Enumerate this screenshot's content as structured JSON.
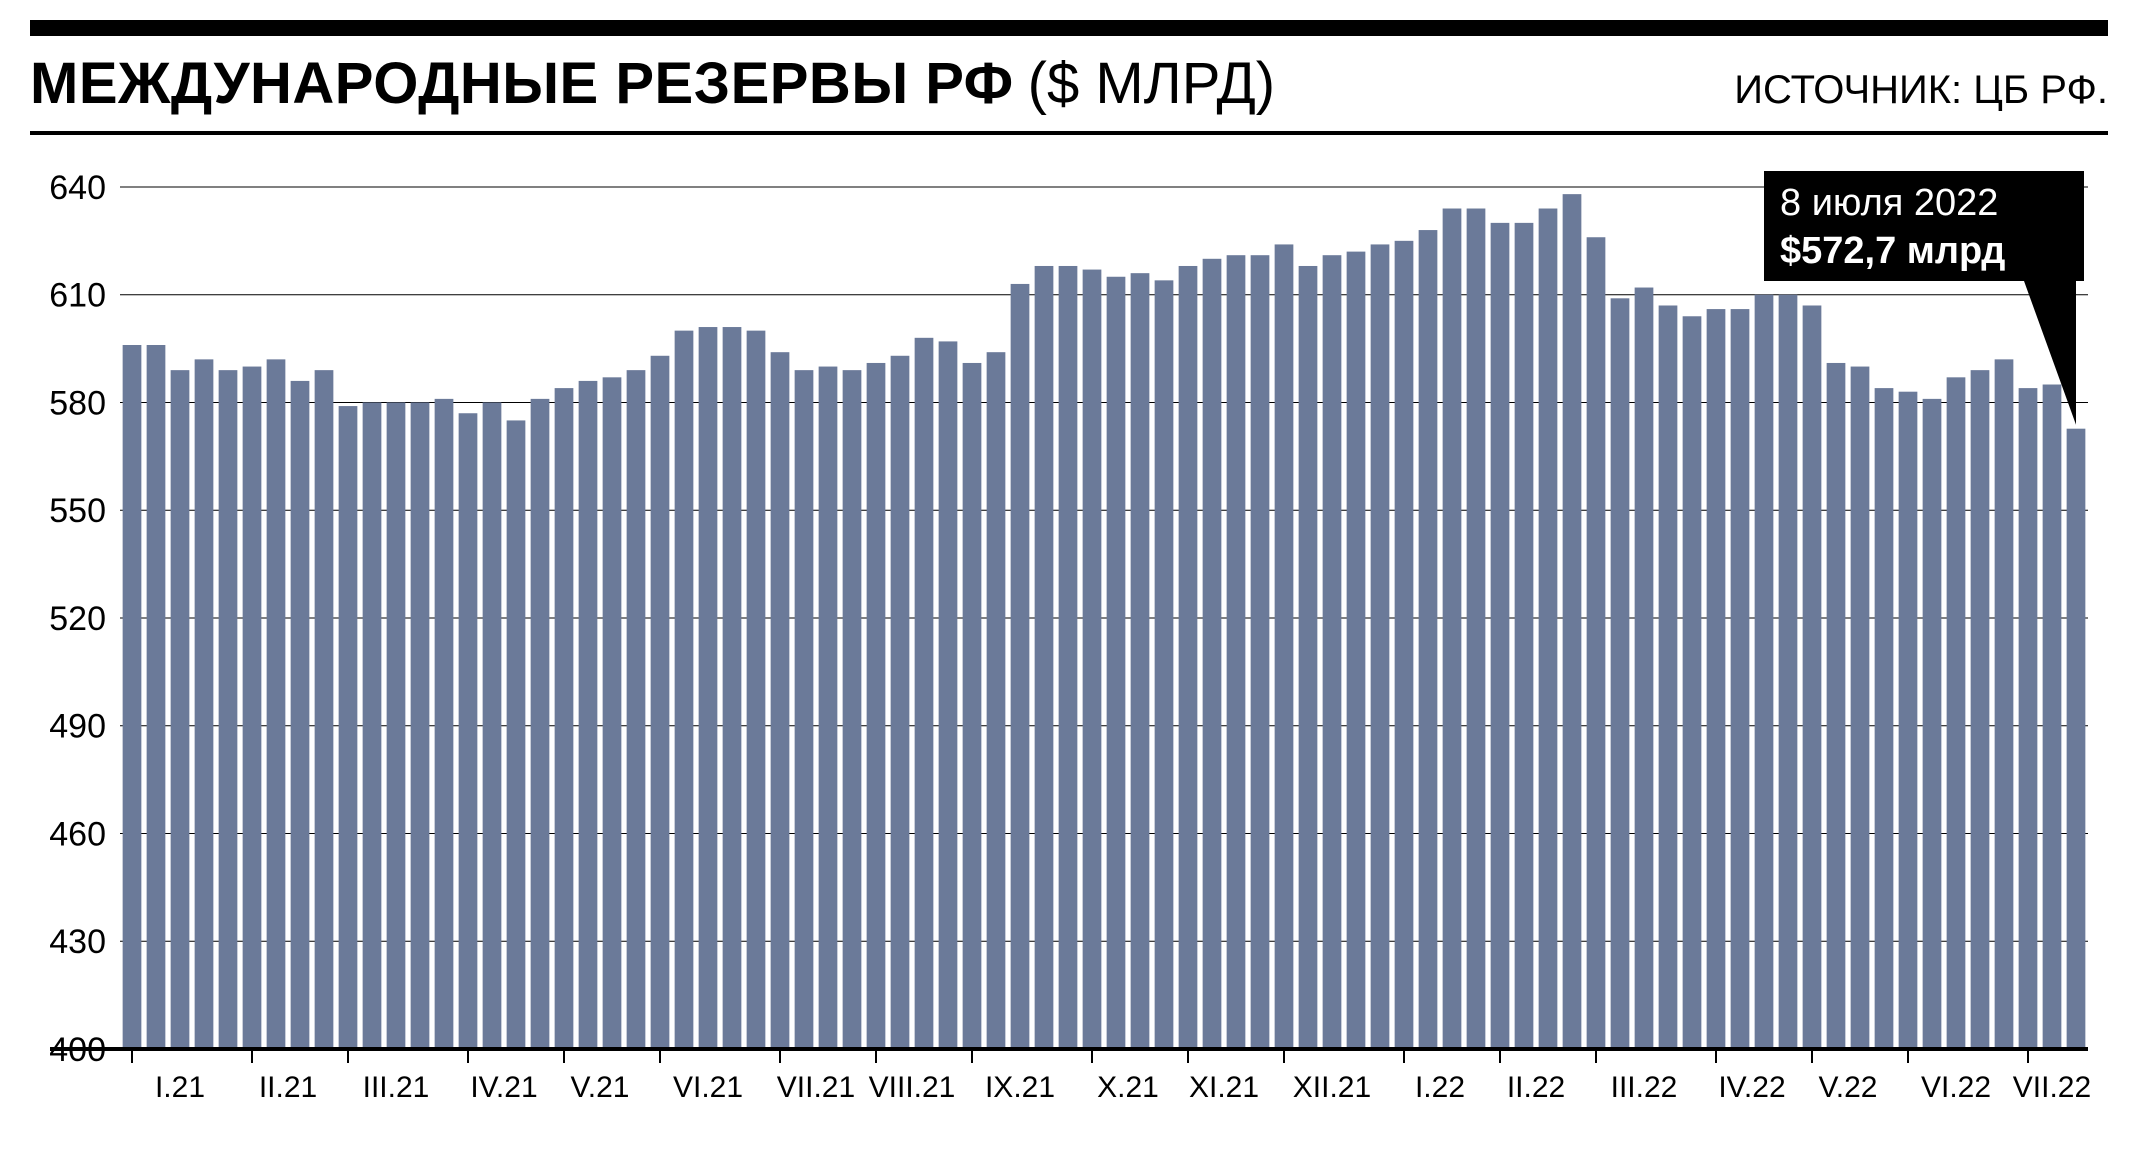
{
  "header": {
    "title_bold": "МЕЖДУНАРОДНЫЕ РЕЗЕРВЫ РФ",
    "title_light": "($ МЛРД)",
    "source": "ИСТОЧНИК: ЦБ РФ."
  },
  "chart": {
    "type": "bar",
    "y_axis": {
      "min": 400,
      "max": 645,
      "ticks": [
        400,
        430,
        460,
        490,
        520,
        550,
        580,
        610,
        640
      ],
      "grid_color": "#000000",
      "grid_width": 1,
      "label_fontsize": 34
    },
    "x_axis": {
      "labels": [
        "I.21",
        "II.21",
        "III.21",
        "IV.21",
        "V.21",
        "VI.21",
        "VII.21",
        "VIII.21",
        "IX.21",
        "X.21",
        "XI.21",
        "XII.21",
        "I.22",
        "II.22",
        "III.22",
        "IV.22",
        "V.22",
        "VI.22",
        "VII.22"
      ],
      "month_starts": [
        0,
        5,
        9,
        14,
        18,
        22,
        27,
        31,
        35,
        40,
        44,
        48,
        53,
        57,
        61,
        66,
        70,
        74,
        79
      ],
      "label_fontsize": 30
    },
    "bar_color": "#6b7a99",
    "bar_gap_ratio": 0.22,
    "background": "#ffffff",
    "axis_color": "#000000",
    "axis_width": 4,
    "values": [
      596,
      596,
      589,
      592,
      589,
      590,
      592,
      586,
      589,
      579,
      580,
      580,
      580,
      581,
      577,
      580,
      575,
      581,
      584,
      586,
      587,
      589,
      593,
      600,
      601,
      601,
      600,
      594,
      589,
      590,
      589,
      591,
      593,
      598,
      597,
      591,
      594,
      613,
      618,
      618,
      617,
      615,
      616,
      614,
      618,
      620,
      621,
      621,
      624,
      618,
      621,
      622,
      624,
      625,
      628,
      634,
      634,
      630,
      630,
      634,
      638,
      626,
      609,
      612,
      607,
      604,
      606,
      606,
      610,
      610,
      607,
      591,
      590,
      584,
      583,
      581,
      587,
      589,
      592,
      584,
      585,
      572.7
    ],
    "callout": {
      "line1": "8 июля 2022",
      "line2": "$572,7 млрд",
      "box_bg": "#000000",
      "text_color": "#ffffff",
      "fontsize": 38
    }
  }
}
